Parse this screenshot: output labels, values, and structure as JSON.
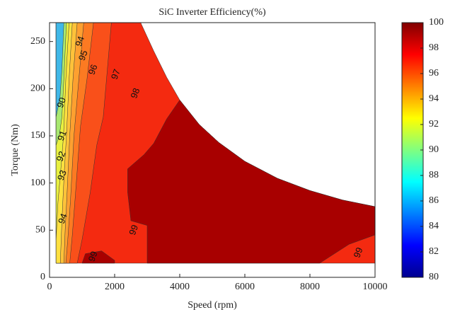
{
  "chart_data": {
    "type": "contour",
    "title": "SiC Inverter Efficiency(%)",
    "x_label": "Speed (rpm)",
    "y_label": "Torque (Nm)",
    "xlim": [
      0,
      10000
    ],
    "xticks": [
      0,
      2000,
      4000,
      6000,
      8000,
      10000
    ],
    "ylim": [
      0,
      270
    ],
    "yticks": [
      0,
      50,
      100,
      150,
      200,
      250
    ],
    "colorbar": {
      "lim": [
        80,
        100
      ],
      "ticks": [
        80,
        82,
        84,
        86,
        88,
        90,
        92,
        94,
        96,
        98,
        100
      ],
      "colormap": [
        "#00008f",
        "#0000ff",
        "#0080ff",
        "#00ffff",
        "#80ff80",
        "#ffff00",
        "#ff8000",
        "#ff0000",
        "#800000"
      ]
    },
    "regions": [
      {
        "level": 98,
        "color": "#f42a10",
        "boundary": [
          [
            200,
            15
          ],
          [
            200,
            270
          ],
          [
            2800,
            270
          ],
          [
            3200,
            240
          ],
          [
            3600,
            212
          ],
          [
            4000,
            188
          ],
          [
            4600,
            162
          ],
          [
            5200,
            143
          ],
          [
            6000,
            123
          ],
          [
            7000,
            105
          ],
          [
            8000,
            92
          ],
          [
            9000,
            82
          ],
          [
            10000,
            75
          ],
          [
            10000,
            15
          ]
        ]
      },
      {
        "level": 97,
        "color": "#f9501a",
        "boundary": [
          [
            200,
            15
          ],
          [
            200,
            270
          ],
          [
            1900,
            270
          ],
          [
            1750,
            210
          ],
          [
            1650,
            170
          ],
          [
            1450,
            140
          ],
          [
            1250,
            90
          ],
          [
            1000,
            40
          ],
          [
            850,
            15
          ]
        ]
      },
      {
        "level": 96,
        "color": "#fc7a22",
        "boundary": [
          [
            200,
            15
          ],
          [
            200,
            270
          ],
          [
            1350,
            270
          ],
          [
            1150,
            210
          ],
          [
            950,
            160
          ],
          [
            800,
            90
          ],
          [
            700,
            45
          ],
          [
            620,
            15
          ]
        ]
      },
      {
        "level": 95,
        "color": "#fda030",
        "boundary": [
          [
            200,
            15
          ],
          [
            200,
            270
          ],
          [
            1050,
            270
          ],
          [
            900,
            210
          ],
          [
            750,
            150
          ],
          [
            640,
            80
          ],
          [
            560,
            40
          ],
          [
            500,
            15
          ]
        ]
      },
      {
        "level": 94,
        "color": "#ffc23a",
        "boundary": [
          [
            200,
            15
          ],
          [
            200,
            270
          ],
          [
            850,
            270
          ],
          [
            720,
            210
          ],
          [
            620,
            150
          ],
          [
            540,
            90
          ],
          [
            480,
            50
          ],
          [
            440,
            15
          ]
        ]
      },
      {
        "level": 93,
        "color": "#ffe040",
        "boundary": [
          [
            200,
            15
          ],
          [
            200,
            270
          ],
          [
            700,
            270
          ],
          [
            600,
            210
          ],
          [
            520,
            150
          ],
          [
            450,
            110
          ],
          [
            380,
            60
          ],
          [
            330,
            15
          ]
        ]
      },
      {
        "level": 92,
        "color": "#e8f040",
        "boundary": [
          [
            200,
            40
          ],
          [
            200,
            270
          ],
          [
            600,
            270
          ],
          [
            500,
            210
          ],
          [
            430,
            150
          ],
          [
            360,
            120
          ],
          [
            260,
            80
          ]
        ]
      },
      {
        "level": 91,
        "color": "#a8e870",
        "boundary": [
          [
            200,
            140
          ],
          [
            200,
            270
          ],
          [
            520,
            270
          ],
          [
            440,
            210
          ],
          [
            380,
            170
          ],
          [
            300,
            150
          ]
        ]
      },
      {
        "level": 90,
        "color": "#40b8e8",
        "boundary": [
          [
            200,
            170
          ],
          [
            200,
            270
          ],
          [
            440,
            270
          ],
          [
            380,
            220
          ],
          [
            320,
            190
          ]
        ]
      },
      {
        "level": 99,
        "color": "#a80000",
        "boundary": [
          [
            3000,
            15
          ],
          [
            3000,
            55
          ],
          [
            2500,
            60
          ],
          [
            2400,
            90
          ],
          [
            2400,
            115
          ],
          [
            2900,
            130
          ],
          [
            3200,
            142
          ],
          [
            3600,
            168
          ],
          [
            4000,
            188
          ],
          [
            4600,
            162
          ],
          [
            5200,
            143
          ],
          [
            6000,
            123
          ],
          [
            7000,
            105
          ],
          [
            8000,
            92
          ],
          [
            9000,
            82
          ],
          [
            10000,
            75
          ],
          [
            10000,
            45
          ],
          [
            9200,
            35
          ],
          [
            8300,
            15
          ]
        ]
      },
      {
        "level": 99,
        "color": "#a80000",
        "boundary": [
          [
            1000,
            15
          ],
          [
            1100,
            25
          ],
          [
            1600,
            28
          ],
          [
            2000,
            18
          ],
          [
            2000,
            15
          ]
        ]
      }
    ],
    "contour_labels": [
      {
        "value": 99,
        "x": 1350,
        "y": 22
      },
      {
        "value": 99,
        "x": 2600,
        "y": 50
      },
      {
        "value": 99,
        "x": 9500,
        "y": 26
      },
      {
        "value": 98,
        "x": 2650,
        "y": 195
      },
      {
        "value": 97,
        "x": 2050,
        "y": 215
      },
      {
        "value": 96,
        "x": 1350,
        "y": 220
      },
      {
        "value": 95,
        "x": 1050,
        "y": 235
      },
      {
        "value": 94,
        "x": 950,
        "y": 250
      },
      {
        "value": 90,
        "x": 380,
        "y": 185
      },
      {
        "value": 91,
        "x": 400,
        "y": 150
      },
      {
        "value": 92,
        "x": 370,
        "y": 128
      },
      {
        "value": 93,
        "x": 400,
        "y": 108
      },
      {
        "value": 94,
        "x": 420,
        "y": 62
      }
    ]
  }
}
